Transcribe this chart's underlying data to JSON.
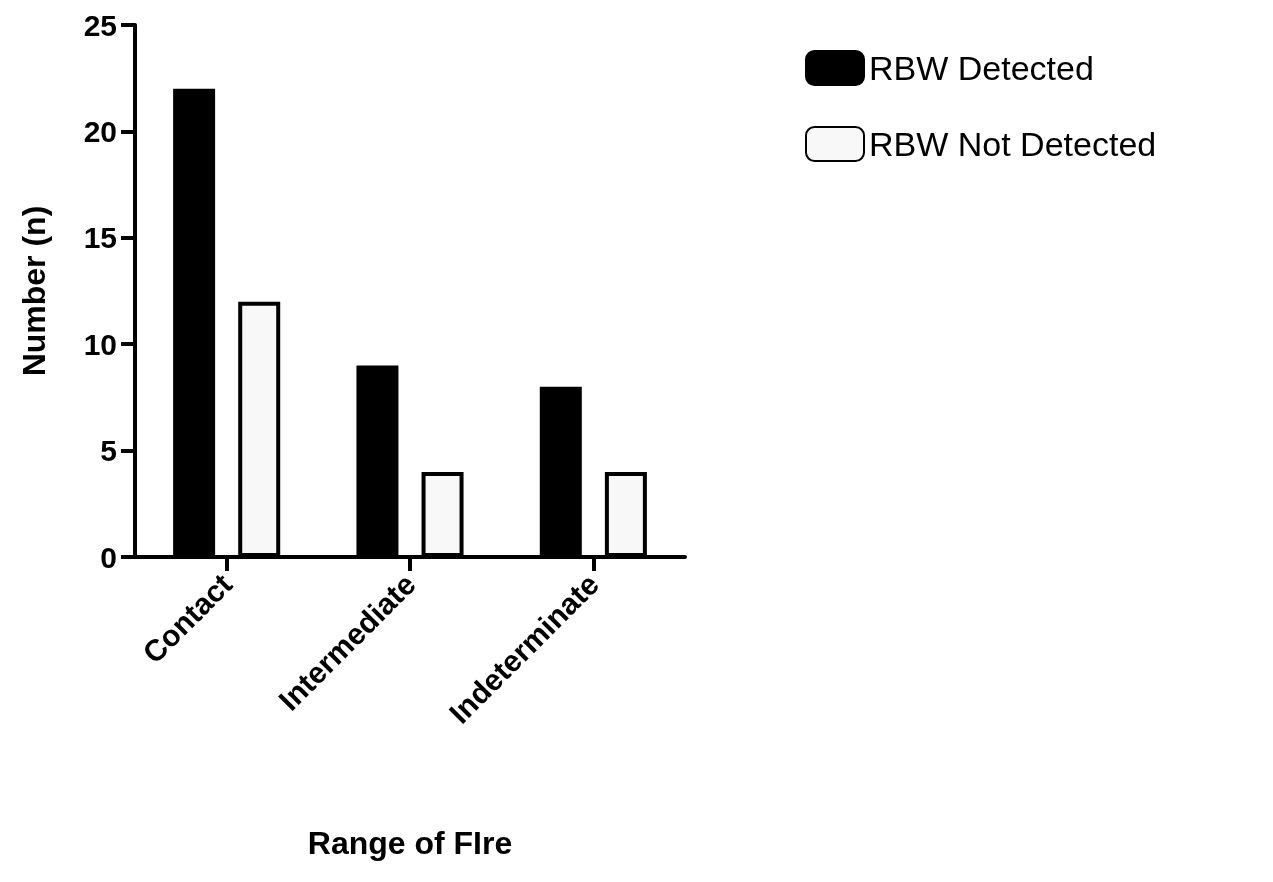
{
  "chart_data": {
    "type": "bar",
    "xlabel": "Range of FIre",
    "ylabel": "Number (n)",
    "categories": [
      "Contact",
      "Intermediate",
      "Indeterminate"
    ],
    "series": [
      {
        "name": "RBW Detected",
        "color": "#000000",
        "values": [
          22,
          9,
          8
        ]
      },
      {
        "name": "RBW Not Detected",
        "color": "#f8f8f8",
        "values": [
          12,
          4,
          4
        ]
      }
    ],
    "ylim": [
      0,
      25
    ],
    "yticks": [
      0,
      5,
      10,
      15,
      20,
      25
    ],
    "grid": false,
    "legend": "top right"
  }
}
